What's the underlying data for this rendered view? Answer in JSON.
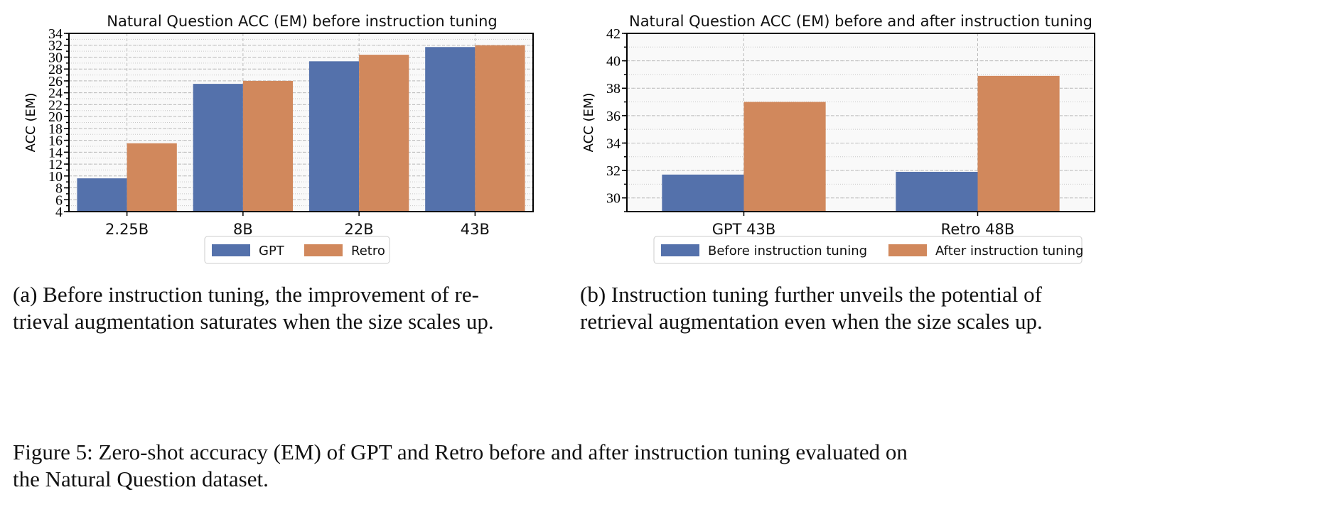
{
  "chart_data": [
    {
      "type": "bar",
      "title": "Natural Question ACC (EM) before instruction tuning",
      "xlabel": "",
      "ylabel": "ACC (EM)",
      "ylim": [
        4,
        34
      ],
      "yticks": [
        4,
        6,
        8,
        10,
        12,
        14,
        16,
        18,
        20,
        22,
        24,
        26,
        28,
        30,
        32,
        34
      ],
      "categories": [
        "2.25B",
        "8B",
        "22B",
        "43B"
      ],
      "series": [
        {
          "name": "GPT",
          "color": "#5471ab",
          "values": [
            9.6,
            25.5,
            29.3,
            31.7
          ]
        },
        {
          "name": "Retro",
          "color": "#d1885c",
          "values": [
            15.5,
            26.0,
            30.4,
            32.0
          ]
        }
      ],
      "grid": true,
      "legend": "bottom"
    },
    {
      "type": "bar",
      "title": "Natural Question ACC (EM) before and after instruction tuning",
      "xlabel": "",
      "ylabel": "ACC (EM)",
      "ylim": [
        29,
        42
      ],
      "yticks": [
        30,
        32,
        34,
        36,
        38,
        40,
        42
      ],
      "categories": [
        "GPT 43B",
        "Retro 48B"
      ],
      "series": [
        {
          "name": "Before instruction tuning",
          "color": "#5471ab",
          "values": [
            31.7,
            31.9
          ]
        },
        {
          "name": "After instruction tuning",
          "color": "#d1885c",
          "values": [
            37.0,
            38.9
          ]
        }
      ],
      "grid": true,
      "legend": "bottom"
    }
  ],
  "captions": {
    "a": "(a) Before instruction tuning, the improvement of re-trieval augmentation saturates when the size scales up.",
    "a_line1": "(a) Before instruction tuning, the improvement of re-",
    "a_line2": "trieval augmentation saturates when the size scales up.",
    "b_line1": "(b) Instruction tuning further unveils the potential of",
    "b_line2": "retrieval augmentation even when the size scales up.",
    "figure_line1": "Figure 5: Zero-shot accuracy (EM) of GPT and Retro before and after instruction tuning evaluated on",
    "figure_line2": "the Natural Question dataset."
  }
}
